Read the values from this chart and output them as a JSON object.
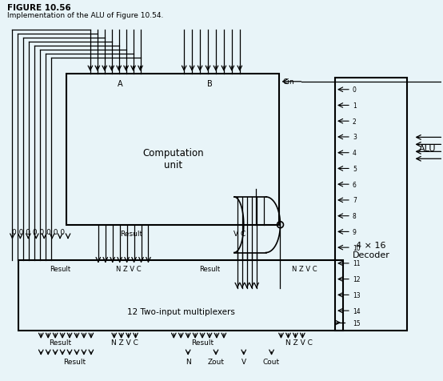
{
  "bg_color": "#e8f4f8",
  "title": "FIGURE 10.56",
  "subtitle": "Implementation of the ALU of Figure 10.54.",
  "decoder_label": "4 × 16\nDecoder",
  "alu_label": "ALU",
  "comp_label": "Computation\nunit",
  "mux_label": "12 Two-input multiplexers",
  "decoder_numbers": [
    "0",
    "1",
    "2",
    "3",
    "4",
    "5",
    "6",
    "7",
    "8",
    "9",
    "10",
    "11",
    "12",
    "13",
    "14"
  ],
  "bottom_labels": [
    "Result",
    "N",
    "Zout",
    "V",
    "Cout"
  ],
  "zeros_label": "0 0 0 0 0 0 0 0"
}
